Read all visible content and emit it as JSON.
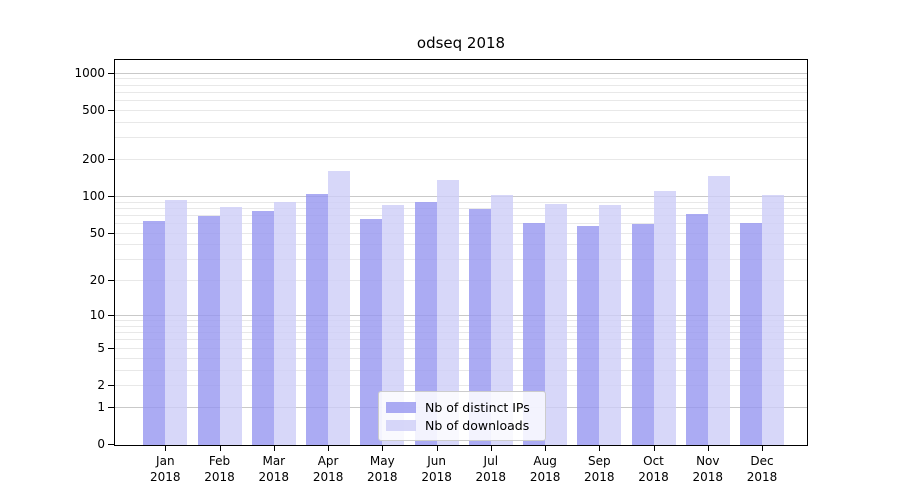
{
  "title": "odseq 2018",
  "chart_data": {
    "type": "bar",
    "title": "odseq 2018",
    "yscale": "log1p",
    "categories": [
      "Jan",
      "Feb",
      "Mar",
      "Apr",
      "May",
      "Jun",
      "Jul",
      "Aug",
      "Sep",
      "Oct",
      "Nov",
      "Dec"
    ],
    "category_year": "2018",
    "series": [
      {
        "name": "Nb of distinct IPs",
        "color": "#9696f0",
        "alpha": 0.8,
        "values": [
          62,
          69,
          75,
          104,
          65,
          89,
          78,
          60,
          57,
          59,
          71,
          60
        ]
      },
      {
        "name": "Nb of downloads",
        "color": "#cdcdf8",
        "alpha": 0.8,
        "values": [
          92,
          81,
          89,
          160,
          85,
          134,
          102,
          86,
          85,
          110,
          146,
          101
        ]
      }
    ],
    "y_ticks": [
      {
        "value": 0,
        "label": "0"
      },
      {
        "value": 1,
        "label": "1"
      },
      {
        "value": 2,
        "label": "2"
      },
      {
        "value": 5,
        "label": "5"
      },
      {
        "value": 10,
        "label": "10"
      },
      {
        "value": 20,
        "label": "20"
      },
      {
        "value": 50,
        "label": "50"
      },
      {
        "value": 100,
        "label": "100"
      },
      {
        "value": 200,
        "label": "200"
      },
      {
        "value": 500,
        "label": "500"
      },
      {
        "value": 1000,
        "label": "1000"
      }
    ],
    "major_gridlines": [
      1,
      10,
      100,
      1000
    ],
    "minor_gridlines": [
      2,
      3,
      4,
      5,
      6,
      7,
      8,
      9,
      20,
      30,
      40,
      50,
      60,
      70,
      80,
      90,
      200,
      300,
      400,
      500,
      600,
      700,
      800,
      900
    ],
    "ylim": [
      0,
      1270
    ],
    "grid": true,
    "xlabel": "",
    "ylabel": "",
    "legend_position": "lower center"
  },
  "colors": {
    "bar_ips_rendered": "#aaaaf1",
    "bar_downloads_rendered": "#d9d9f9",
    "grid_major": "#c9c9c9",
    "grid_minor": "#e8e8e8",
    "spine": "#000000",
    "text": "#000000",
    "legend_border": "#cccccc",
    "background": "#ffffff"
  }
}
